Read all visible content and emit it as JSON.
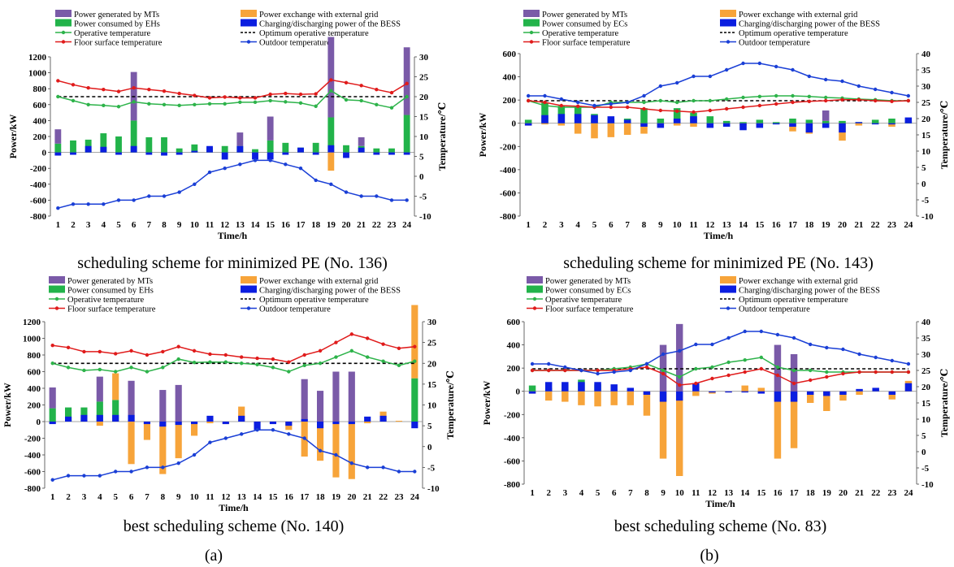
{
  "figure": {
    "panel_labels": [
      "(a)",
      "(b)"
    ],
    "axis_units": {
      "y_left": "Power/kW",
      "y_right": "Temperature/℃",
      "x": "Time/h"
    }
  },
  "colors": {
    "mt": "#7a5aa8",
    "grid": "#f7a43a",
    "eh": "#22b34a",
    "bess": "#0b1ee0",
    "operative": "#2db34a",
    "optimum": "#000000",
    "floor": "#e01b1b",
    "outdoor": "#1a3fd6"
  },
  "chart_data": [
    {
      "type": "bar",
      "caption": "scheduling scheme for minimized PE (No. 136)",
      "xlabel": "Time/h",
      "ylabel": "Power/kW",
      "y2label": "Temperature/℃",
      "ylim": [
        -800,
        1200
      ],
      "y2lim": [
        -10,
        30
      ],
      "categories": [
        "1",
        "2",
        "3",
        "4",
        "5",
        "6",
        "7",
        "8",
        "9",
        "10",
        "11",
        "12",
        "13",
        "14",
        "15",
        "16",
        "17",
        "18",
        "19",
        "20",
        "21",
        "22",
        "23",
        "24"
      ],
      "legend": [
        {
          "name": "Power generated by MTs",
          "kind": "bar",
          "color": "#7a5aa8"
        },
        {
          "name": "Power exchange with external grid",
          "kind": "bar",
          "color": "#f7a43a"
        },
        {
          "name": "Power consumed by EHs",
          "kind": "bar",
          "color": "#22b34a"
        },
        {
          "name": "Charging/discharging power of the BESS",
          "kind": "bar",
          "color": "#0b1ee0"
        },
        {
          "name": "Operative temperature",
          "kind": "line",
          "color": "#2db34a"
        },
        {
          "name": "Optimum operative temperature",
          "kind": "dash",
          "color": "#000000"
        },
        {
          "name": "Floor surface temperature",
          "kind": "line",
          "color": "#e01b1b"
        },
        {
          "name": "Outdoor temperature",
          "kind": "line",
          "color": "#1a3fd6"
        }
      ],
      "bars": {
        "mt": [
          180,
          0,
          0,
          0,
          0,
          610,
          0,
          0,
          0,
          0,
          0,
          0,
          170,
          0,
          300,
          0,
          0,
          0,
          1010,
          0,
          110,
          0,
          0,
          850
        ],
        "grid": [
          0,
          0,
          0,
          0,
          0,
          0,
          0,
          0,
          0,
          0,
          0,
          0,
          0,
          0,
          0,
          0,
          0,
          0,
          -230,
          0,
          0,
          0,
          0,
          0
        ],
        "eh": [
          110,
          150,
          160,
          240,
          200,
          400,
          190,
          190,
          50,
          100,
          60,
          80,
          80,
          40,
          150,
          120,
          60,
          120,
          440,
          90,
          80,
          50,
          50,
          470
        ],
        "bess": [
          -40,
          -30,
          80,
          70,
          -30,
          80,
          -30,
          -40,
          -30,
          20,
          80,
          -90,
          80,
          -90,
          -90,
          -30,
          60,
          -30,
          90,
          -70,
          60,
          -30,
          -30,
          -30
        ]
      },
      "lines": {
        "operative": [
          20,
          19,
          18,
          17.8,
          17.5,
          18.7,
          18.2,
          18,
          17.8,
          18,
          18.2,
          18.2,
          18.6,
          18.6,
          19,
          18.7,
          18.4,
          17.6,
          21.5,
          19.2,
          19,
          18,
          17.2,
          20
        ],
        "optimum": [
          20,
          20,
          20,
          20,
          20,
          20,
          20,
          20,
          20,
          20,
          20,
          20,
          20,
          20,
          20,
          20,
          20,
          20,
          20,
          20,
          20,
          20,
          20,
          20
        ],
        "floor": [
          24,
          23,
          22.2,
          21.8,
          21.3,
          22.2,
          21.8,
          21.4,
          20.8,
          20.3,
          19.7,
          19.9,
          19.7,
          19.7,
          20.6,
          20.8,
          20.6,
          20.7,
          24.2,
          23.5,
          22.8,
          21.8,
          21,
          23.3
        ],
        "outdoor": [
          -8,
          -7,
          -7,
          -7,
          -6,
          -6,
          -5,
          -5,
          -4,
          -2,
          1,
          2,
          3,
          4,
          4,
          3,
          2,
          -1,
          -2,
          -4,
          -5,
          -5,
          -6,
          -6
        ]
      }
    },
    {
      "type": "bar",
      "caption": "scheduling scheme for minimized PE (No. 143)",
      "xlabel": "Time/h",
      "ylabel": "Power/kW",
      "y2label": "Temperature/℃",
      "ylim": [
        -800,
        600
      ],
      "y2lim": [
        -10,
        40
      ],
      "categories": [
        "1",
        "2",
        "3",
        "4",
        "5",
        "6",
        "7",
        "8",
        "9",
        "10",
        "11",
        "12",
        "13",
        "14",
        "15",
        "16",
        "17",
        "18",
        "19",
        "20",
        "21",
        "22",
        "23",
        "24"
      ],
      "legend": [
        {
          "name": "Power generated by MTs",
          "kind": "bar",
          "color": "#7a5aa8"
        },
        {
          "name": "Power exchange with external grid",
          "kind": "bar",
          "color": "#f7a43a"
        },
        {
          "name": "Power consumed by ECs",
          "kind": "bar",
          "color": "#22b34a"
        },
        {
          "name": "Charging/discharging power of the BESS",
          "kind": "bar",
          "color": "#0b1ee0"
        },
        {
          "name": "Operative temperature",
          "kind": "line",
          "color": "#2db34a"
        },
        {
          "name": "Optimum operative temperature",
          "kind": "dash",
          "color": "#000000"
        },
        {
          "name": "Floor surface temperature",
          "kind": "line",
          "color": "#e01b1b"
        },
        {
          "name": "Outdoor temperature",
          "kind": "line",
          "color": "#1a3fd6"
        }
      ],
      "bars": {
        "mt": [
          0,
          0,
          0,
          0,
          0,
          0,
          0,
          0,
          0,
          0,
          0,
          0,
          0,
          0,
          0,
          0,
          0,
          0,
          90,
          0,
          0,
          0,
          0,
          0
        ],
        "grid": [
          -20,
          -10,
          -20,
          -90,
          -130,
          -120,
          -100,
          -90,
          -20,
          -20,
          -30,
          0,
          0,
          -20,
          -20,
          0,
          -70,
          -90,
          0,
          -150,
          -20,
          0,
          -30,
          0
        ],
        "eh": [
          30,
          180,
          150,
          150,
          80,
          40,
          40,
          130,
          40,
          130,
          90,
          60,
          20,
          10,
          30,
          10,
          40,
          30,
          20,
          20,
          10,
          30,
          40,
          20
        ],
        "bess": [
          -20,
          70,
          80,
          80,
          70,
          60,
          30,
          -30,
          -40,
          40,
          60,
          -40,
          -30,
          -60,
          -40,
          -10,
          -30,
          -80,
          -40,
          -80,
          10,
          -10,
          -10,
          50
        ]
      },
      "lines": {
        "operative": [
          25.5,
          24,
          23.5,
          23.5,
          23.5,
          25,
          25,
          25,
          25.5,
          25,
          25.5,
          25.5,
          26,
          26.5,
          26.8,
          27,
          27,
          26.8,
          26.5,
          26.3,
          26,
          25.8,
          25.5,
          25.5
        ],
        "optimum": [
          25.5,
          25.5,
          25.5,
          25.5,
          25.5,
          25.5,
          25.5,
          25.5,
          25.5,
          25.5,
          25.5,
          25.5,
          25.5,
          25.5,
          25.5,
          25.5,
          25.5,
          25.5,
          25.5,
          25.5,
          25.5,
          25.5,
          25.5,
          25.5
        ],
        "floor": [
          25.5,
          25,
          24,
          23.8,
          23.5,
          23.5,
          23.5,
          23,
          22.5,
          22.3,
          22,
          22.5,
          23,
          23.5,
          24,
          24.5,
          25,
          25.3,
          25.5,
          25.8,
          25.8,
          25.5,
          25.3,
          25.5
        ],
        "outdoor": [
          27,
          27,
          26,
          25,
          24,
          24.5,
          25,
          27,
          30,
          31,
          33,
          33,
          35,
          37,
          37,
          36,
          35,
          33,
          32,
          31.5,
          30,
          29,
          28,
          27
        ]
      }
    },
    {
      "type": "bar",
      "caption": "best scheduling scheme (No. 140)",
      "xlabel": "Time/h",
      "ylabel": "Power/kW",
      "y2label": "Temperature/℃",
      "ylim": [
        -800,
        1200
      ],
      "y2lim": [
        -10,
        30
      ],
      "categories": [
        "1",
        "2",
        "3",
        "4",
        "5",
        "6",
        "7",
        "8",
        "9",
        "10",
        "11",
        "12",
        "13",
        "14",
        "15",
        "16",
        "17",
        "18",
        "19",
        "20",
        "21",
        "22",
        "23",
        "24"
      ],
      "legend": [
        {
          "name": "Power generated by MTs",
          "kind": "bar",
          "color": "#7a5aa8"
        },
        {
          "name": "Power exchange with external grid",
          "kind": "bar",
          "color": "#f7a43a"
        },
        {
          "name": "Power consumed by EHs",
          "kind": "bar",
          "color": "#22b34a"
        },
        {
          "name": "Charging/discharging power of the BESS",
          "kind": "bar",
          "color": "#0b1ee0"
        },
        {
          "name": "Operative temperature",
          "kind": "line",
          "color": "#2db34a"
        },
        {
          "name": "Optimum operative temperature",
          "kind": "dash",
          "color": "#000000"
        },
        {
          "name": "Floor surface temperature",
          "kind": "line",
          "color": "#e01b1b"
        },
        {
          "name": "Outdoor temperature",
          "kind": "line",
          "color": "#1a3fd6"
        }
      ],
      "bars": {
        "mt": [
          250,
          0,
          0,
          300,
          0,
          490,
          0,
          380,
          440,
          0,
          0,
          0,
          0,
          0,
          0,
          0,
          510,
          370,
          600,
          600,
          0,
          0,
          0,
          0
        ],
        "grid": [
          -20,
          0,
          0,
          -50,
          320,
          -510,
          -220,
          -630,
          -440,
          -170,
          -20,
          -30,
          180,
          -10,
          -10,
          -100,
          -420,
          -470,
          -670,
          -690,
          -20,
          120,
          10,
          880
        ],
        "eh": [
          160,
          170,
          170,
          240,
          260,
          0,
          0,
          0,
          0,
          0,
          0,
          0,
          0,
          0,
          0,
          0,
          0,
          0,
          0,
          0,
          0,
          0,
          0,
          520
        ],
        "bess": [
          -30,
          60,
          80,
          80,
          80,
          80,
          -30,
          -60,
          -40,
          -30,
          70,
          -30,
          70,
          -100,
          -30,
          -50,
          30,
          -80,
          -30,
          -30,
          60,
          70,
          0,
          -80
        ]
      },
      "lines": {
        "operative": [
          20,
          19,
          18.3,
          18.5,
          18,
          19,
          18,
          19,
          21,
          20.2,
          20.3,
          20.3,
          20,
          19.7,
          19,
          18,
          19.5,
          20,
          21.5,
          23,
          21.5,
          20.5,
          19.5,
          20.5
        ],
        "optimum": [
          20,
          20,
          20,
          20,
          20,
          20,
          20,
          20,
          20,
          20,
          20,
          20,
          20,
          20,
          20,
          20,
          20,
          20,
          20,
          20,
          20,
          20,
          20,
          20
        ],
        "floor": [
          24.3,
          23.8,
          22.8,
          22.8,
          22.3,
          23,
          22,
          22.8,
          24,
          23,
          22.2,
          22,
          21.5,
          21.2,
          21,
          20.3,
          22,
          23,
          25,
          27,
          26,
          24.6,
          23.6,
          24
        ],
        "outdoor": [
          -8,
          -7,
          -7,
          -7,
          -6,
          -6,
          -5,
          -5,
          -4,
          -2,
          1,
          2,
          3,
          4,
          4,
          3,
          2,
          -1,
          -2,
          -4,
          -5,
          -5,
          -6,
          -6
        ]
      }
    },
    {
      "type": "bar",
      "caption": "best scheduling scheme (No. 83)",
      "xlabel": "Time/h",
      "ylabel": "Power/kW",
      "y2label": "Temperature/℃",
      "ylim": [
        -800,
        600
      ],
      "y2lim": [
        -10,
        40
      ],
      "categories": [
        "1",
        "2",
        "3",
        "4",
        "5",
        "6",
        "7",
        "8",
        "9",
        "10",
        "11",
        "12",
        "13",
        "14",
        "15",
        "16",
        "17",
        "18",
        "19",
        "20",
        "21",
        "22",
        "23",
        "24"
      ],
      "legend": [
        {
          "name": "Power generated by MTs",
          "kind": "bar",
          "color": "#7a5aa8"
        },
        {
          "name": "Power exchange with external grid",
          "kind": "bar",
          "color": "#f7a43a"
        },
        {
          "name": "Power consumed by ECs",
          "kind": "bar",
          "color": "#22b34a"
        },
        {
          "name": "Charging/discharging power of the BESS",
          "kind": "bar",
          "color": "#0b1ee0"
        },
        {
          "name": "Operative temperature",
          "kind": "line",
          "color": "#2db34a"
        },
        {
          "name": "Optimum operative temperature",
          "kind": "dash",
          "color": "#000000"
        },
        {
          "name": "Floor surface temperature",
          "kind": "line",
          "color": "#e01b1b"
        },
        {
          "name": "Outdoor temperature",
          "kind": "line",
          "color": "#1a3fd6"
        }
      ],
      "bars": {
        "mt": [
          0,
          0,
          0,
          0,
          0,
          0,
          0,
          0,
          400,
          580,
          0,
          0,
          0,
          0,
          0,
          400,
          320,
          0,
          0,
          0,
          0,
          0,
          0,
          0
        ],
        "grid": [
          -20,
          -80,
          -90,
          -120,
          -130,
          -120,
          -120,
          -210,
          -580,
          -730,
          -40,
          -20,
          -10,
          50,
          30,
          -580,
          -490,
          -100,
          -170,
          -80,
          -30,
          0,
          -70,
          90
        ],
        "eh": [
          50,
          30,
          60,
          100,
          60,
          0,
          0,
          0,
          0,
          0,
          0,
          0,
          0,
          0,
          0,
          0,
          0,
          0,
          0,
          0,
          0,
          0,
          0,
          0
        ],
        "bess": [
          -20,
          80,
          80,
          80,
          80,
          60,
          30,
          -30,
          -90,
          -80,
          70,
          -10,
          -10,
          -10,
          -20,
          -90,
          -90,
          -30,
          -40,
          -30,
          20,
          30,
          -30,
          70
        ]
      },
      "lines": {
        "operative": [
          25,
          25,
          25,
          25,
          25,
          25.5,
          26,
          27,
          25,
          23,
          25.5,
          26,
          27.5,
          28.2,
          29,
          26,
          25,
          25,
          24.5,
          24.5,
          24.5,
          24.5,
          24.5,
          24.5
        ],
        "optimum": [
          25.5,
          25.5,
          25.5,
          25.5,
          25.5,
          25.5,
          25.5,
          25.5,
          25.5,
          25.5,
          25.5,
          25.5,
          25.5,
          25.5,
          25.5,
          25.5,
          25.5,
          25.5,
          25.5,
          25.5,
          25.5,
          25.5,
          25.5,
          25.5
        ],
        "floor": [
          25,
          25,
          25,
          25,
          25,
          25,
          25.5,
          26,
          24,
          20.5,
          21,
          22.5,
          23.5,
          24.5,
          25.5,
          23.5,
          21,
          22,
          23,
          24,
          24.5,
          24.5,
          24.5,
          24.5
        ],
        "outdoor": [
          27,
          27,
          26,
          25,
          24,
          24.5,
          25,
          27,
          30,
          31,
          33,
          33,
          35,
          37,
          37,
          36,
          35,
          33,
          32,
          31.5,
          30,
          29,
          28,
          27
        ]
      }
    }
  ]
}
